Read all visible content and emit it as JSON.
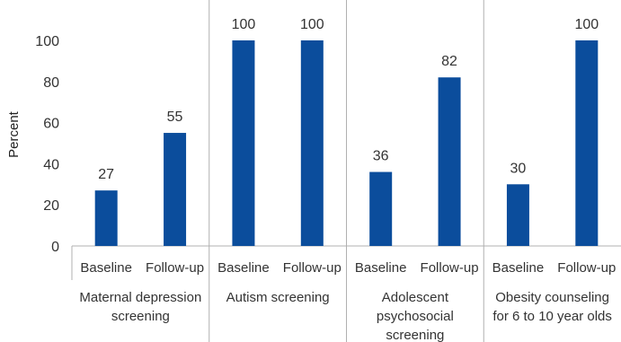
{
  "chart_data": {
    "type": "bar",
    "title": "",
    "xlabel": "",
    "ylabel": "Percent",
    "ylim": [
      0,
      100
    ],
    "yticks": [
      0,
      20,
      40,
      60,
      80,
      100
    ],
    "grid": false,
    "legend": "none",
    "bar_color": "#0b4d9c",
    "groups": [
      {
        "label": [
          "Maternal depression",
          "screening"
        ],
        "bars": [
          {
            "category": "Baseline",
            "value": 27
          },
          {
            "category": "Follow-up",
            "value": 55
          }
        ]
      },
      {
        "label": [
          "Autism screening"
        ],
        "bars": [
          {
            "category": "Baseline",
            "value": 100
          },
          {
            "category": "Follow-up",
            "value": 100
          }
        ]
      },
      {
        "label": [
          "Adolescent",
          "psychosocial",
          "screening"
        ],
        "bars": [
          {
            "category": "Baseline",
            "value": 36
          },
          {
            "category": "Follow-up",
            "value": 82
          }
        ]
      },
      {
        "label": [
          "Obesity counseling",
          "for 6 to 10 year olds"
        ],
        "bars": [
          {
            "category": "Baseline",
            "value": 30
          },
          {
            "category": "Follow-up",
            "value": 100
          }
        ]
      }
    ]
  }
}
